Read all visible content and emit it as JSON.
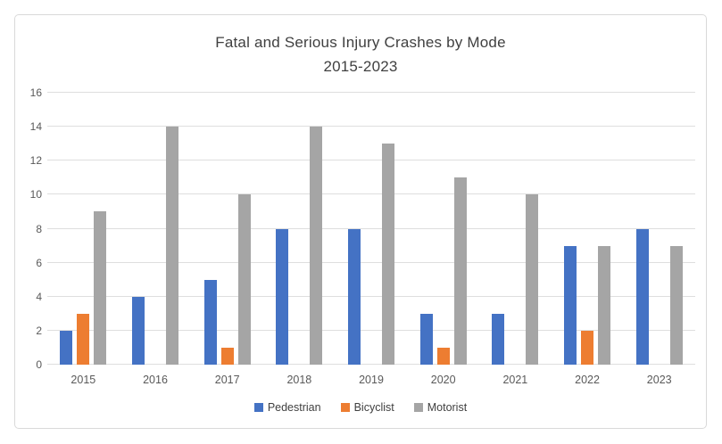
{
  "chart_data": {
    "type": "bar",
    "title": "Fatal and Serious Injury Crashes by Mode",
    "subtitle": "2015-2023",
    "categories": [
      "2015",
      "2016",
      "2017",
      "2018",
      "2019",
      "2020",
      "2021",
      "2022",
      "2023"
    ],
    "series": [
      {
        "name": "Pedestrian",
        "color": "#4472C4",
        "values": [
          2,
          4,
          5,
          8,
          8,
          3,
          3,
          7,
          8
        ]
      },
      {
        "name": "Bicyclist",
        "color": "#ED7D31",
        "values": [
          3,
          0,
          1,
          0,
          0,
          1,
          0,
          2,
          0
        ]
      },
      {
        "name": "Motorist",
        "color": "#A5A5A5",
        "values": [
          9,
          14,
          10,
          14,
          13,
          11,
          10,
          7,
          7
        ]
      }
    ],
    "ylim": [
      0,
      16
    ],
    "ytick_step": 2,
    "grid": true,
    "legend_position": "bottom"
  }
}
